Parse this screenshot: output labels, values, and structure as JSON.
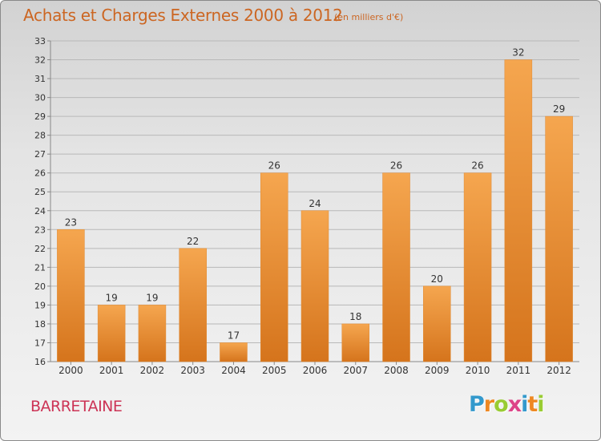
{
  "title": "Achats et Charges Externes 2000 à 2012",
  "unit": "(en milliers d'€)",
  "commune": "BARRETAINE",
  "logo": {
    "letters": [
      "P",
      "r",
      "o",
      "x",
      "i",
      "t",
      "i"
    ],
    "colors": [
      "#3399cc",
      "#ee8822",
      "#99cc33",
      "#dd4488",
      "#3399cc",
      "#ee8822",
      "#99cc33"
    ]
  },
  "colors": {
    "bar_top": "#f5a64f",
    "bar_bottom": "#d5741c",
    "title": "#cc6622",
    "commune": "#cc3355",
    "grid": "#b8b8b8"
  },
  "chart_data": {
    "type": "bar",
    "title": "Achats et Charges Externes 2000 à 2012",
    "subtitle": "(en milliers d'€)",
    "categories": [
      "2000",
      "2001",
      "2002",
      "2003",
      "2004",
      "2005",
      "2006",
      "2007",
      "2008",
      "2009",
      "2010",
      "2011",
      "2012"
    ],
    "values": [
      23,
      19,
      19,
      22,
      17,
      26,
      24,
      18,
      26,
      20,
      26,
      32,
      29
    ],
    "xlabel": "",
    "ylabel": "",
    "ylim": [
      16,
      33
    ],
    "yticks": [
      16,
      17,
      18,
      19,
      20,
      21,
      22,
      23,
      24,
      25,
      26,
      27,
      28,
      29,
      30,
      31,
      32,
      33
    ],
    "grid": true,
    "data_labels": true
  }
}
